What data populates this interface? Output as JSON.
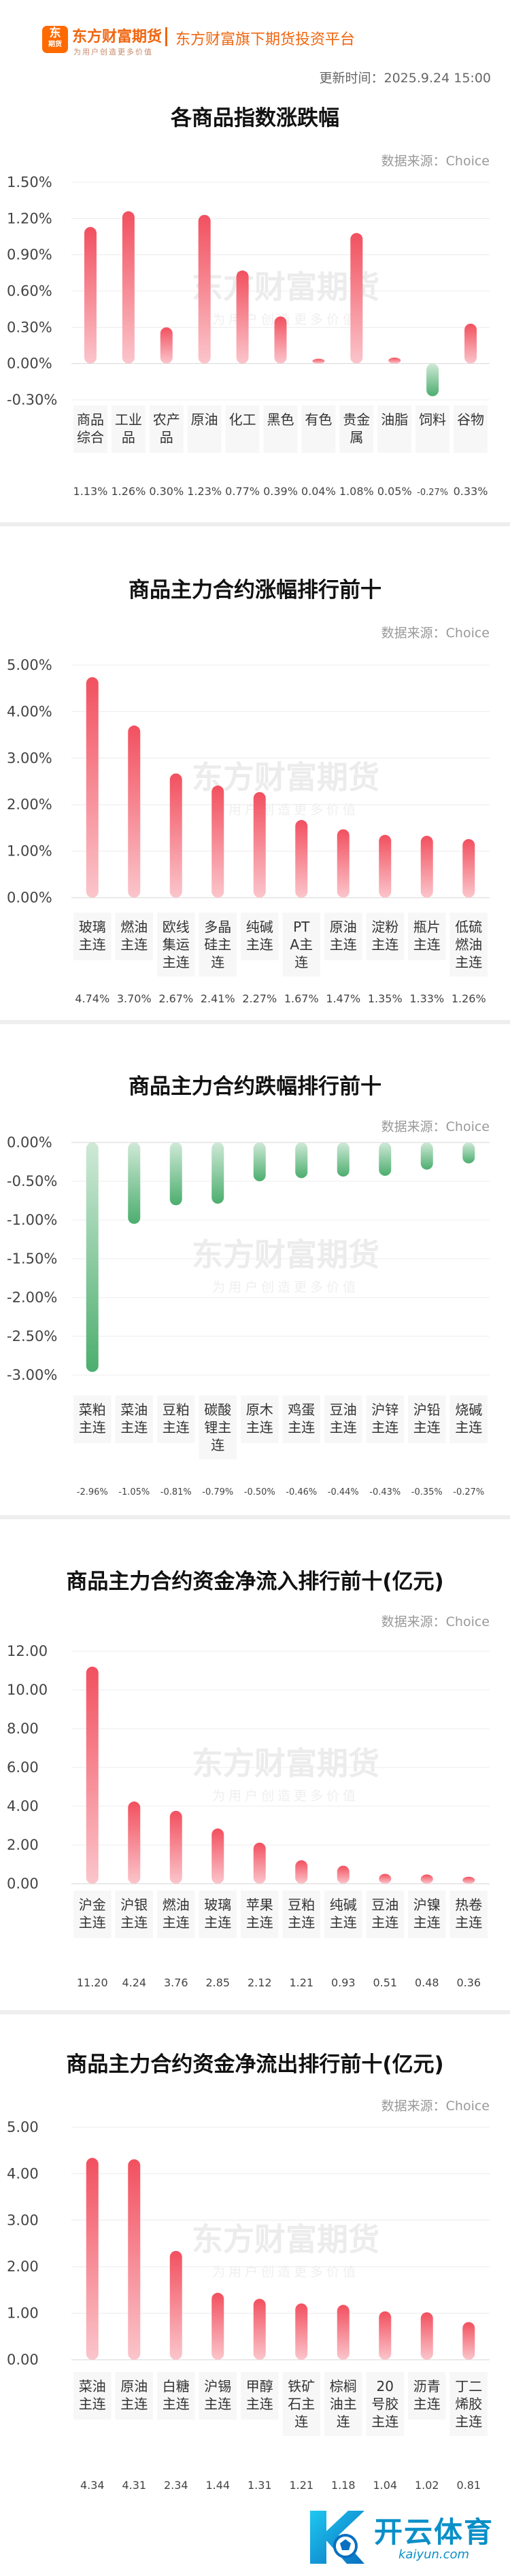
{
  "header": {
    "logo_glyph": "东",
    "logo_mini": "期货",
    "brand_name": "东方财富期货",
    "brand_slogan": "为用户创造更多价值",
    "platform": "东方财富旗下期货投资平台",
    "update_time": "更新时间：2025.9.24 15:00"
  },
  "source_label": "数据来源：Choice",
  "watermark": {
    "main": "东方财富期货",
    "sub": "为用户创造更多价值"
  },
  "colors": {
    "up": "#f2505f",
    "up_light": "#fbc5cb",
    "down": "#4cae6e",
    "down_light": "#cfe9d7",
    "brand": "#f0650f",
    "kaiyun": "#0a8fc8"
  },
  "footer": {
    "name": "开云体育",
    "url": "kaiyun.com"
  },
  "chart_data": [
    {
      "type": "bar",
      "title": "各商品指数涨跌幅",
      "categories": [
        "商品综合",
        "工业品",
        "农产品",
        "原油",
        "化工",
        "黑色",
        "有色",
        "贵金属",
        "油脂",
        "饲料",
        "谷物"
      ],
      "values": [
        1.13,
        1.26,
        0.3,
        1.23,
        0.77,
        0.39,
        0.04,
        1.08,
        0.05,
        -0.27,
        0.33
      ],
      "value_labels": [
        "1.13%",
        "1.26%",
        "0.30%",
        "1.23%",
        "0.77%",
        "0.39%",
        "0.04%",
        "1.08%",
        "0.05%",
        "-0.27%",
        "0.33%"
      ],
      "yticks": [
        "1.50%",
        "1.20%",
        "0.90%",
        "0.60%",
        "0.30%",
        "0.00%",
        "-0.30%"
      ],
      "ylim": [
        -0.3,
        1.5
      ],
      "unit": "%"
    },
    {
      "type": "bar",
      "title": "商品主力合约涨幅排行前十",
      "categories": [
        "玻璃主连",
        "燃油主连",
        "欧线集运主连",
        "多晶硅主连",
        "纯碱主连",
        "PTA主连",
        "原油主连",
        "淀粉主连",
        "瓶片主连",
        "低硫燃油主连"
      ],
      "values": [
        4.74,
        3.7,
        2.67,
        2.41,
        2.27,
        1.67,
        1.47,
        1.35,
        1.33,
        1.26
      ],
      "value_labels": [
        "4.74%",
        "3.70%",
        "2.67%",
        "2.41%",
        "2.27%",
        "1.67%",
        "1.47%",
        "1.35%",
        "1.33%",
        "1.26%"
      ],
      "yticks": [
        "5.00%",
        "4.00%",
        "3.00%",
        "2.00%",
        "1.00%",
        "0.00%"
      ],
      "ylim": [
        0,
        5
      ],
      "unit": "%"
    },
    {
      "type": "bar",
      "title": "商品主力合约跌幅排行前十",
      "categories": [
        "菜粕主连",
        "菜油主连",
        "豆粕主连",
        "碳酸锂主连",
        "原木主连",
        "鸡蛋主连",
        "豆油主连",
        "沪锌主连",
        "沪铅主连",
        "烧碱主连"
      ],
      "values": [
        -2.96,
        -1.05,
        -0.81,
        -0.79,
        -0.5,
        -0.46,
        -0.44,
        -0.43,
        -0.35,
        -0.27
      ],
      "value_labels": [
        "-2.96%",
        "-1.05%",
        "-0.81%",
        "-0.79%",
        "-0.50%",
        "-0.46%",
        "-0.44%",
        "-0.43%",
        "-0.35%",
        "-0.27%"
      ],
      "yticks": [
        "0.00%",
        "-0.50%",
        "-1.00%",
        "-1.50%",
        "-2.00%",
        "-2.50%",
        "-3.00%"
      ],
      "ylim": [
        -3,
        0
      ],
      "unit": "%"
    },
    {
      "type": "bar",
      "title": "商品主力合约资金净流入排行前十(亿元)",
      "categories": [
        "沪金主连",
        "沪银主连",
        "燃油主连",
        "玻璃主连",
        "苹果主连",
        "豆粕主连",
        "纯碱主连",
        "豆油主连",
        "沪镍主连",
        "热卷主连"
      ],
      "values": [
        11.2,
        4.24,
        3.76,
        2.85,
        2.12,
        1.21,
        0.93,
        0.51,
        0.48,
        0.36
      ],
      "value_labels": [
        "11.20",
        "4.24",
        "3.76",
        "2.85",
        "2.12",
        "1.21",
        "0.93",
        "0.51",
        "0.48",
        "0.36"
      ],
      "yticks": [
        "12.00",
        "10.00",
        "8.00",
        "6.00",
        "4.00",
        "2.00",
        "0.00"
      ],
      "ylim": [
        0,
        12
      ],
      "unit": "亿元"
    },
    {
      "type": "bar",
      "title": "商品主力合约资金净流出排行前十(亿元)",
      "categories": [
        "菜油主连",
        "原油主连",
        "白糖主连",
        "沪锡主连",
        "甲醇主连",
        "铁矿石主连",
        "棕榈油主连",
        "20号胶主连",
        "沥青主连",
        "丁二烯胶主连"
      ],
      "values": [
        4.34,
        4.31,
        2.34,
        1.44,
        1.31,
        1.21,
        1.18,
        1.04,
        1.02,
        0.81
      ],
      "value_labels": [
        "4.34",
        "4.31",
        "2.34",
        "1.44",
        "1.31",
        "1.21",
        "1.18",
        "1.04",
        "1.02",
        "0.81"
      ],
      "yticks": [
        "5.00",
        "4.00",
        "3.00",
        "2.00",
        "1.00",
        "0.00"
      ],
      "ylim": [
        0,
        5
      ],
      "unit": "亿元"
    }
  ]
}
